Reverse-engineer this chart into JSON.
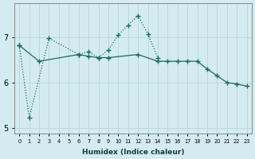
{
  "xlabel": "Humidex (Indice chaleur)",
  "background_color": "#d4ecf0",
  "grid_color": "#b8d8de",
  "line_color": "#1a6b5a",
  "dotted_x": [
    0,
    1,
    3,
    6,
    7,
    8,
    9,
    10,
    11,
    12,
    13,
    14
  ],
  "dotted_y": [
    6.82,
    5.22,
    6.98,
    6.62,
    6.68,
    6.55,
    6.72,
    7.05,
    7.27,
    7.48,
    7.07,
    6.55
  ],
  "solid_x": [
    0,
    2,
    6,
    7,
    8,
    9,
    12,
    14,
    15,
    16,
    17,
    18,
    19,
    20,
    21,
    22,
    23
  ],
  "solid_y": [
    6.82,
    6.47,
    6.62,
    6.58,
    6.55,
    6.55,
    6.62,
    6.47,
    6.47,
    6.47,
    6.47,
    6.47,
    6.3,
    6.15,
    6.0,
    5.97,
    5.92
  ],
  "ylim": [
    4.88,
    7.75
  ],
  "yticks": [
    5,
    6,
    7
  ],
  "xticks": [
    0,
    1,
    2,
    3,
    4,
    5,
    6,
    7,
    8,
    9,
    10,
    11,
    12,
    13,
    14,
    15,
    16,
    17,
    18,
    19,
    20,
    21,
    22,
    23
  ]
}
